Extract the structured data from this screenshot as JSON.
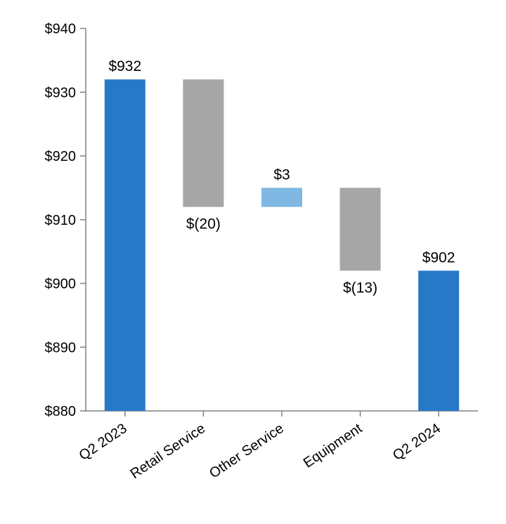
{
  "chart_data": {
    "type": "bar",
    "subtype": "waterfall",
    "title": "",
    "xlabel": "",
    "ylabel": "",
    "ylim": [
      880,
      940
    ],
    "yticks": [
      880,
      890,
      900,
      910,
      920,
      930,
      940
    ],
    "ytick_labels": [
      "$880",
      "$890",
      "$900",
      "$910",
      "$920",
      "$930",
      "$940"
    ],
    "grid": false,
    "legend": "none",
    "categories": [
      "Q2 2023",
      "Retail Service",
      "Other Service",
      "Equipment",
      "Q2 2024"
    ],
    "bars": [
      {
        "category": "Q2 2023",
        "kind": "total",
        "start": 880,
        "end": 932,
        "label": "$932",
        "label_pos": "above",
        "color": "#2878c8"
      },
      {
        "category": "Retail Service",
        "kind": "decrease",
        "start": 932,
        "end": 912,
        "label": "$(20)",
        "label_pos": "below",
        "color": "#a6a6a6"
      },
      {
        "category": "Other Service",
        "kind": "increase",
        "start": 912,
        "end": 915,
        "label": "$3",
        "label_pos": "above",
        "color": "#7fb8e3"
      },
      {
        "category": "Equipment",
        "kind": "decrease",
        "start": 915,
        "end": 902,
        "label": "$(13)",
        "label_pos": "below",
        "color": "#a6a6a6"
      },
      {
        "category": "Q2 2024",
        "kind": "total",
        "start": 880,
        "end": 902,
        "label": "$902",
        "label_pos": "above",
        "color": "#2878c8"
      }
    ],
    "axis_color": "#808080"
  }
}
